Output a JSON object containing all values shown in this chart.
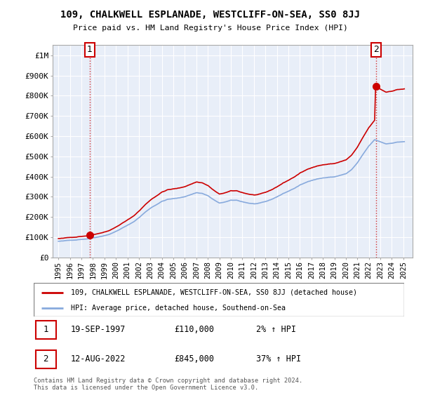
{
  "title": "109, CHALKWELL ESPLANADE, WESTCLIFF-ON-SEA, SS0 8JJ",
  "subtitle": "Price paid vs. HM Land Registry's House Price Index (HPI)",
  "legend_line1": "109, CHALKWELL ESPLANADE, WESTCLIFF-ON-SEA, SS0 8JJ (detached house)",
  "legend_line2": "HPI: Average price, detached house, Southend-on-Sea",
  "annotation1_date": "19-SEP-1997",
  "annotation1_price": "£110,000",
  "annotation1_hpi": "2% ↑ HPI",
  "annotation2_date": "12-AUG-2022",
  "annotation2_price": "£845,000",
  "annotation2_hpi": "37% ↑ HPI",
  "footer": "Contains HM Land Registry data © Crown copyright and database right 2024.\nThis data is licensed under the Open Government Licence v3.0.",
  "sale1_year": 1997.72,
  "sale1_price": 110000,
  "sale2_year": 2022.62,
  "sale2_price": 845000,
  "price_line_color": "#cc0000",
  "hpi_line_color": "#88aadd",
  "chart_bg_color": "#e8eef8",
  "grid_color": "#ffffff",
  "ylim": [
    0,
    1050000
  ],
  "xlim": [
    1994.5,
    2025.8
  ],
  "yticks": [
    0,
    100000,
    200000,
    300000,
    400000,
    500000,
    600000,
    700000,
    800000,
    900000,
    1000000
  ],
  "ylabels": [
    "£0",
    "£100K",
    "£200K",
    "£300K",
    "£400K",
    "£500K",
    "£600K",
    "£700K",
    "£800K",
    "£900K",
    "£1M"
  ]
}
